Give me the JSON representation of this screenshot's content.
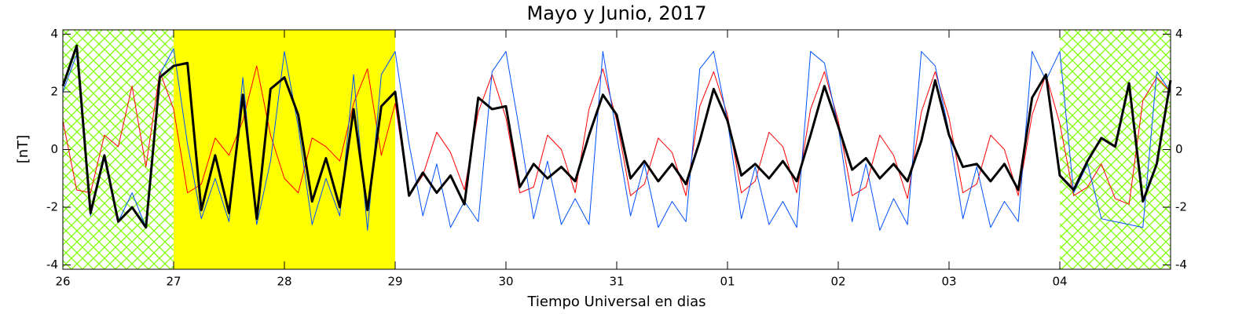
{
  "chart_data": {
    "type": "line",
    "title": "Mayo y Junio, 2017",
    "x_label": "Tiempo Universal en dias",
    "y_label": "[nT]",
    "xlim": [
      0,
      10
    ],
    "xticks": [
      {
        "value": 0,
        "label": "26"
      },
      {
        "value": 1,
        "label": "27"
      },
      {
        "value": 2,
        "label": "28"
      },
      {
        "value": 3,
        "label": "29"
      },
      {
        "value": 4,
        "label": "30"
      },
      {
        "value": 5,
        "label": "31"
      },
      {
        "value": 6,
        "label": "01"
      },
      {
        "value": 7,
        "label": "02"
      },
      {
        "value": 8,
        "label": "03"
      },
      {
        "value": 9,
        "label": "04"
      }
    ],
    "ylim": [
      -4.15,
      4.15
    ],
    "yticks": [
      -4,
      -2,
      0,
      2,
      4
    ],
    "y2lim": [
      -4.15,
      4.15
    ],
    "y2ticks": [
      -4,
      -2,
      0,
      2,
      4
    ],
    "regions": [
      {
        "from": 0,
        "to": 1,
        "style": "hatch",
        "color": "#7fff00"
      },
      {
        "from": 1,
        "to": 3,
        "style": "fill",
        "color": "#ffff00"
      },
      {
        "from": 9,
        "to": 10,
        "style": "hatch",
        "color": "#7fff00"
      }
    ],
    "x": [
      0,
      0.125,
      0.25,
      0.375,
      0.5,
      0.625,
      0.75,
      0.875,
      1,
      1.125,
      1.25,
      1.375,
      1.5,
      1.625,
      1.75,
      1.875,
      2,
      2.125,
      2.25,
      2.375,
      2.5,
      2.625,
      2.75,
      2.875,
      3,
      3.125,
      3.25,
      3.375,
      3.5,
      3.625,
      3.75,
      3.875,
      4,
      4.125,
      4.25,
      4.375,
      4.5,
      4.625,
      4.75,
      4.875,
      5,
      5.125,
      5.25,
      5.375,
      5.5,
      5.625,
      5.75,
      5.875,
      6,
      6.125,
      6.25,
      6.375,
      6.5,
      6.625,
      6.75,
      6.875,
      7,
      7.125,
      7.25,
      7.375,
      7.5,
      7.625,
      7.75,
      7.875,
      8,
      8.125,
      8.25,
      8.375,
      8.5,
      8.625,
      8.75,
      8.875,
      9,
      9.125,
      9.25,
      9.375,
      9.5,
      9.625,
      9.75,
      9.875,
      10
    ],
    "series": [
      {
        "name": "red",
        "color": "#ff0000",
        "width": 1,
        "values": [
          1.0,
          -1.4,
          -1.5,
          0.5,
          0.1,
          2.2,
          -0.6,
          2.7,
          1.4,
          -1.5,
          -1.2,
          0.4,
          -0.2,
          1.0,
          2.9,
          0.5,
          -1.0,
          -1.5,
          0.4,
          0.1,
          -0.4,
          1.6,
          2.8,
          -0.2,
          1.6,
          -1.6,
          -0.9,
          0.6,
          -0.1,
          -1.4,
          1.3,
          2.6,
          1.1,
          -1.5,
          -1.3,
          0.5,
          0.0,
          -1.5,
          1.4,
          2.8,
          1.0,
          -1.6,
          -1.2,
          0.4,
          -0.1,
          -1.6,
          1.5,
          2.7,
          1.2,
          -1.5,
          -1.1,
          0.6,
          0.1,
          -1.5,
          1.4,
          2.7,
          1.0,
          -1.6,
          -1.3,
          0.5,
          -0.2,
          -1.7,
          1.3,
          2.7,
          1.1,
          -1.5,
          -1.2,
          0.5,
          0.0,
          -1.6,
          1.2,
          2.6,
          0.9,
          -1.6,
          -1.3,
          -0.5,
          -1.7,
          -1.9,
          1.7,
          2.5,
          2.0
        ]
      },
      {
        "name": "blue",
        "color": "#0050ff",
        "width": 1,
        "values": [
          2.0,
          3.3,
          -2.3,
          -0.3,
          -2.5,
          -1.5,
          -2.7,
          2.6,
          3.5,
          0.2,
          -2.4,
          -1.0,
          -2.5,
          2.5,
          -2.6,
          -0.4,
          3.4,
          0.8,
          -2.6,
          -1.0,
          -2.3,
          2.6,
          -2.8,
          2.6,
          3.4,
          0.2,
          -2.3,
          -0.5,
          -2.7,
          -1.8,
          -2.5,
          2.7,
          3.4,
          0.6,
          -2.4,
          -0.4,
          -2.6,
          -1.7,
          -2.6,
          3.4,
          0.5,
          -2.3,
          -0.5,
          -2.7,
          -1.8,
          -2.5,
          2.8,
          3.4,
          1.0,
          -2.4,
          -0.6,
          -2.6,
          -1.8,
          -2.7,
          3.4,
          3.0,
          0.8,
          -2.5,
          -0.5,
          -2.8,
          -1.7,
          -2.6,
          3.4,
          2.9,
          0.6,
          -2.4,
          -0.6,
          -2.7,
          -1.8,
          -2.5,
          3.4,
          2.4,
          3.4,
          -1.5,
          -0.5,
          -2.4,
          -2.5,
          -2.6,
          -2.7,
          2.7,
          2.0
        ]
      },
      {
        "name": "black",
        "color": "#000000",
        "width": 3,
        "values": [
          2.2,
          3.6,
          -2.2,
          -0.2,
          -2.5,
          -2.0,
          -2.7,
          2.5,
          2.9,
          3.0,
          -2.1,
          -0.2,
          -2.2,
          1.9,
          -2.4,
          2.1,
          2.5,
          1.2,
          -1.8,
          -0.3,
          -2.0,
          1.4,
          -2.1,
          1.5,
          2.0,
          -1.6,
          -0.8,
          -1.5,
          -0.9,
          -1.9,
          1.8,
          1.4,
          1.5,
          -1.3,
          -0.5,
          -1.0,
          -0.6,
          -1.1,
          0.5,
          1.9,
          1.2,
          -1.0,
          -0.4,
          -1.1,
          -0.5,
          -1.2,
          0.3,
          2.1,
          1.0,
          -0.9,
          -0.5,
          -1.0,
          -0.4,
          -1.1,
          0.5,
          2.2,
          0.8,
          -0.7,
          -0.3,
          -1.0,
          -0.5,
          -1.1,
          0.3,
          2.4,
          0.5,
          -0.6,
          -0.5,
          -1.1,
          -0.5,
          -1.4,
          1.8,
          2.6,
          -0.9,
          -1.4,
          -0.4,
          0.4,
          0.1,
          2.3,
          -1.8,
          -0.5,
          2.4
        ]
      }
    ]
  }
}
